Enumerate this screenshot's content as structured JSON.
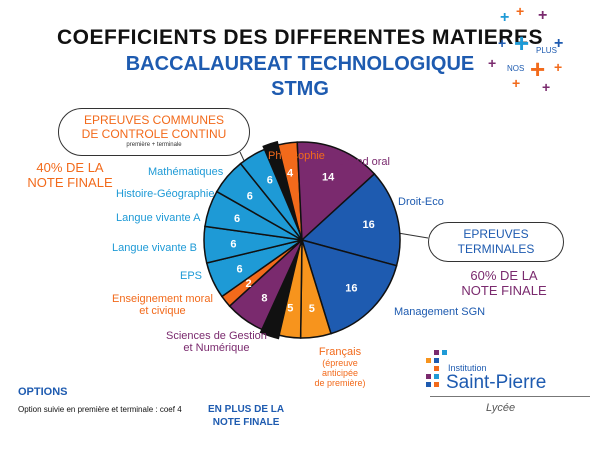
{
  "title_line1": "COEFFICIENTS DES DIFFERENTES MATIERES",
  "title_line2": "BACCALAUREAT TECHNOLOGIQUE",
  "title_line3": "STMG",
  "logo_top": {
    "plus": "PLUS",
    "nos": "NOS"
  },
  "controle_continu": {
    "box_title_line1": "EPREUVES COMMUNES",
    "box_title_line2": "DE CONTROLE CONTINU",
    "box_subtitle": "première + terminale",
    "percent_line1": "40% DE LA",
    "percent_line2": "NOTE FINALE"
  },
  "terminales": {
    "box_title_line1": "EPREUVES",
    "box_title_line2": "TERMINALES",
    "percent_line1": "60% DE LA",
    "percent_line2": "NOTE FINALE"
  },
  "options": {
    "title": "OPTIONS",
    "text": "Option suivie en première et terminale : coef 4",
    "extra_line1": "EN PLUS DE LA",
    "extra_line2": "NOTE FINALE"
  },
  "school": {
    "institution": "Institution",
    "name": "Saint-Pierre",
    "sub": "Lycée"
  },
  "chart_data": {
    "type": "pie",
    "slices": [
      {
        "label": "Philosophie",
        "value": 4,
        "group": "terminales",
        "color": "#f26a1b"
      },
      {
        "label": "Grand oral",
        "value": 14,
        "group": "terminales",
        "color": "#7a2a6e"
      },
      {
        "label": "Droit-Eco",
        "value": 16,
        "group": "terminales",
        "color": "#1e5bb0"
      },
      {
        "label": "Management SGN",
        "value": 16,
        "group": "terminales",
        "color": "#1e5bb0"
      },
      {
        "label": "Français (épreuve anticipée de première)",
        "value": 5,
        "group": "terminales",
        "color": "#f7941d"
      },
      {
        "label": "Français (épreuve anticipée de première)",
        "value": 5,
        "group": "terminales",
        "color": "#f7941d"
      },
      {
        "label": "Sciences de Gestion et Numérique",
        "value": 8,
        "group": "controle_continu",
        "color": "#7a2a6e"
      },
      {
        "label": "Enseignement moral et civique",
        "value": 2,
        "group": "controle_continu",
        "color": "#f26a1b"
      },
      {
        "label": "EPS",
        "value": 6,
        "group": "controle_continu",
        "color": "#1e9ad6"
      },
      {
        "label": "Langue vivante B",
        "value": 6,
        "group": "controle_continu",
        "color": "#1e9ad6"
      },
      {
        "label": "Langue vivante A",
        "value": 6,
        "group": "controle_continu",
        "color": "#1e9ad6"
      },
      {
        "label": "Histoire-Géographie",
        "value": 6,
        "group": "controle_continu",
        "color": "#1e9ad6"
      },
      {
        "label": "Mathématiques",
        "value": 6,
        "group": "controle_continu",
        "color": "#1e9ad6"
      }
    ],
    "labels": {
      "philosophie": "Philosophie",
      "grand_oral": "Grand oral",
      "droit_eco": "Droit-Eco",
      "management": "Management SGN",
      "francais_line1": "Français",
      "francais_line2": "(épreuve",
      "francais_line3": "anticipée",
      "francais_line4": "de première)",
      "sgn_line1": "Sciences de Gestion",
      "sgn_line2": "et Numérique",
      "emc_line1": "Enseignement moral",
      "emc_line2": "et civique",
      "eps": "EPS",
      "lvb": "Langue vivante B",
      "lva": "Langue vivante A",
      "hg": "Histoire-Géographie",
      "maths": "Mathématiques"
    }
  }
}
